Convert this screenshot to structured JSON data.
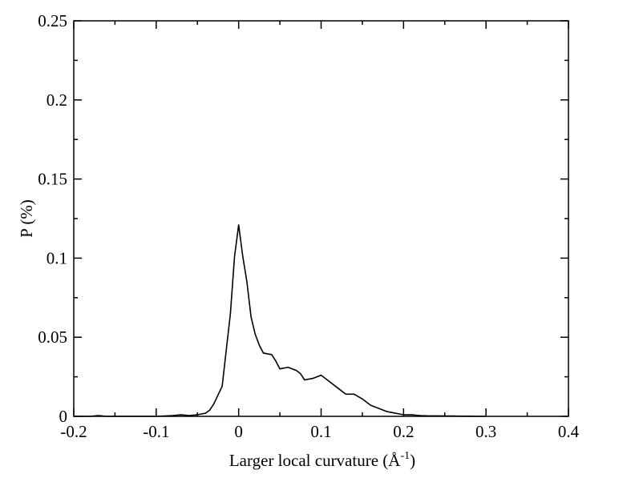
{
  "chart_data": {
    "type": "line",
    "title": "",
    "xlabel": "Larger local curvature (",
    "xlabel_symbol": "Å",
    "xlabel_exponent": "-1",
    "xlabel_suffix": ")",
    "ylabel": "P (%)",
    "xlim": [
      -0.2,
      0.4
    ],
    "ylim": [
      0,
      0.25
    ],
    "xticks": [
      -0.2,
      -0.1,
      0,
      0.1,
      0.2,
      0.3,
      0.4
    ],
    "xtick_labels": [
      "-0.2",
      "-0.1",
      "0",
      "0.1",
      "0.2",
      "0.3",
      "0.4"
    ],
    "yticks": [
      0,
      0.05,
      0.1,
      0.15,
      0.2,
      0.25
    ],
    "ytick_labels": [
      "0",
      "0.05",
      "0.1",
      "0.15",
      "0.2",
      "0.25"
    ],
    "grid": false,
    "line_color": "#000000",
    "series": [
      {
        "x": [
          -0.2,
          -0.18,
          -0.17,
          -0.16,
          -0.12,
          -0.1,
          -0.08,
          -0.07,
          -0.06,
          -0.05,
          -0.04,
          -0.035,
          -0.03,
          -0.02,
          -0.01,
          -0.005,
          0.0,
          0.005,
          0.01,
          0.015,
          0.02,
          0.025,
          0.03,
          0.04,
          0.045,
          0.05,
          0.06,
          0.07,
          0.075,
          0.08,
          0.09,
          0.1,
          0.11,
          0.12,
          0.13,
          0.14,
          0.15,
          0.16,
          0.17,
          0.18,
          0.19,
          0.2,
          0.21,
          0.22,
          0.23,
          0.24,
          0.25,
          0.26,
          0.27,
          0.28,
          0.29,
          0.3
        ],
        "y": [
          0.0,
          0.0,
          0.0005,
          0.0,
          0.0,
          0.0,
          0.0005,
          0.001,
          0.0005,
          0.001,
          0.002,
          0.004,
          0.008,
          0.019,
          0.065,
          0.101,
          0.121,
          0.101,
          0.085,
          0.063,
          0.052,
          0.045,
          0.04,
          0.039,
          0.035,
          0.03,
          0.031,
          0.029,
          0.027,
          0.023,
          0.024,
          0.026,
          0.022,
          0.018,
          0.014,
          0.014,
          0.011,
          0.007,
          0.005,
          0.003,
          0.002,
          0.001,
          0.001,
          0.0005,
          0.0003,
          0.0003,
          0.0002,
          0.0002,
          0.0001,
          0.0001,
          0.0,
          0.0
        ]
      }
    ]
  }
}
